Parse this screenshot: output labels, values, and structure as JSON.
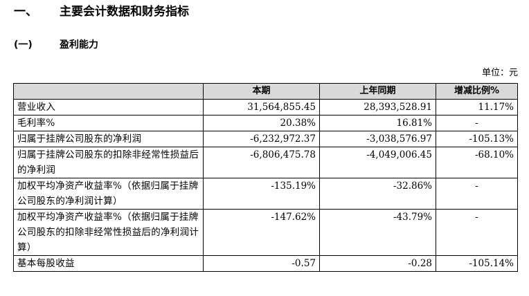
{
  "heading": {
    "number": "一、",
    "text": "主要会计数据和财务指标"
  },
  "subheading": {
    "number": "(一)",
    "text": "盈利能力"
  },
  "unit_label": "单位：元",
  "table": {
    "headers": [
      "",
      "本期",
      "上年同期",
      "增减比例%"
    ],
    "rows": [
      {
        "label": "营业收入",
        "current": "31,564,855.45",
        "previous": "28,393,528.91",
        "change": "11.17%"
      },
      {
        "label": "毛利率%",
        "current": "20.38%",
        "previous": "16.81%",
        "change": "-"
      },
      {
        "label": "归属于挂牌公司股东的净利润",
        "current": "-6,232,972.37",
        "previous": "-3,038,576.97",
        "change": "-105.13%"
      },
      {
        "label": "归属于挂牌公司股东的扣除非经常性损益后的净利润",
        "current": "-6,806,475.78",
        "previous": "-4,049,006.45",
        "change": "-68.10%"
      },
      {
        "label": "加权平均净资产收益率%（依据归属于挂牌公司股东的净利润计算）",
        "current": "-135.19%",
        "previous": "-32.86%",
        "change": "-"
      },
      {
        "label": "加权平均净资产收益率%（依据归属于挂牌公司股东的扣除非经常性损益后的净利润计算）",
        "current": "-147.62%",
        "previous": "-43.79%",
        "change": "-"
      },
      {
        "label": "基本每股收益",
        "current": "-0.57",
        "previous": "-0.28",
        "change": "-105.14%"
      }
    ]
  }
}
